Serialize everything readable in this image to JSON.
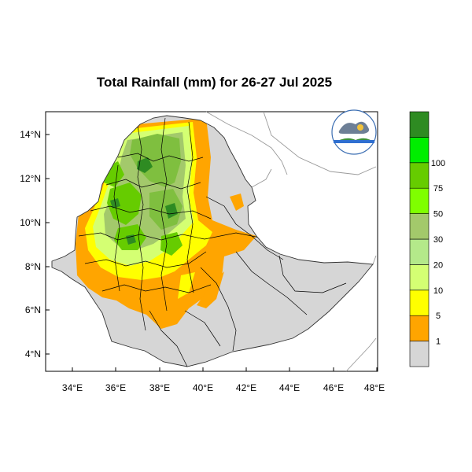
{
  "title": "Total Rainfall (mm) for 26-27 Jul 2025",
  "x_ticks": [
    "34°E",
    "36°E",
    "38°E",
    "40°E",
    "42°E",
    "44°E",
    "46°E",
    "48°E"
  ],
  "y_ticks": [
    "14°N",
    "12°N",
    "10°N",
    "8°N",
    "6°N",
    "4°N"
  ],
  "colorbar": {
    "classes": [
      {
        "color": "#d6d6d6"
      },
      {
        "color": "#ffa500",
        "label": "1"
      },
      {
        "color": "#ffff00",
        "label": "5"
      },
      {
        "color": "#d4ff73",
        "label": "10"
      },
      {
        "color": "#b4e98a",
        "label": "20"
      },
      {
        "color": "#a3c96b",
        "label": "30"
      },
      {
        "color": "#7fff00",
        "label": "50"
      },
      {
        "color": "#66cc00",
        "label": "75"
      },
      {
        "color": "#00ee00",
        "label": "100"
      },
      {
        "color": "#2e8b22"
      }
    ]
  },
  "colors": {
    "land": "#d6d6d6",
    "orange": "#ffa500",
    "yellow": "#ffff00",
    "light_green": "#d4ff73",
    "sage": "#a3c96b",
    "mid_green": "#7fbf3f",
    "bright_green": "#66cc00",
    "dark_green": "#2e8b22"
  },
  "logo": {
    "icon": "meteorology-agency-logo-icon"
  }
}
